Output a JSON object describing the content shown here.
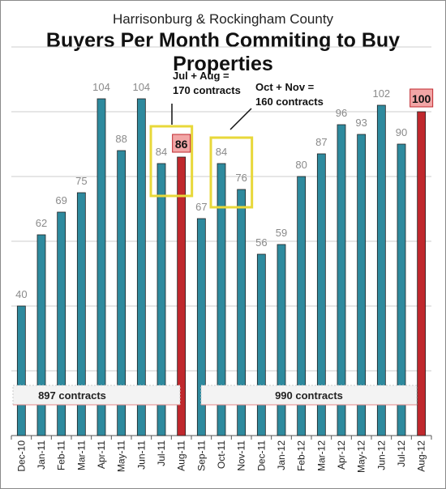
{
  "chart_data": {
    "type": "bar",
    "subtitle": "Harrisonburg & Rockingham County",
    "title": "Buyers Per Month Commiting to Buy Properties",
    "categories": [
      "Dec-10",
      "Jan-11",
      "Feb-11",
      "Mar-11",
      "Apr-11",
      "May-11",
      "Jun-11",
      "Jul-11",
      "Aug-11",
      "Sep-11",
      "Oct-11",
      "Nov-11",
      "Dec-11",
      "Jan-12",
      "Feb-12",
      "Mar-12",
      "Apr-12",
      "May-12",
      "Jun-12",
      "Jul-12",
      "Aug-12"
    ],
    "values": [
      40,
      62,
      69,
      75,
      104,
      88,
      104,
      84,
      86,
      67,
      84,
      76,
      56,
      59,
      80,
      87,
      96,
      93,
      102,
      90,
      100
    ],
    "highlighted": [
      "Aug-11",
      "Aug-12"
    ],
    "ylim": [
      0,
      120
    ],
    "grid": true,
    "colors": {
      "bar": "#2e8a9e",
      "highlight_bar": "#c0282d",
      "highlight_label_bg": "#f2a6a6",
      "box": "#e8d83a",
      "grid": "#cccccc"
    },
    "annotations": {
      "julaug": [
        "Jul + Aug =",
        "170 contracts"
      ],
      "octnov": [
        "Oct + Nov =",
        "160 contracts"
      ],
      "total1": "897 contracts",
      "total2": "990 contracts"
    }
  }
}
